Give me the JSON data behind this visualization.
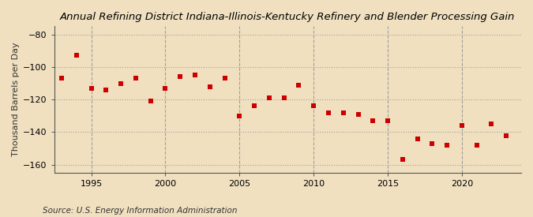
{
  "title": "Annual Refining District Indiana-Illinois-Kentucky Refinery and Blender Processing Gain",
  "ylabel": "Thousand Barrels per Day",
  "source": "Source: U.S. Energy Information Administration",
  "background_color": "#f0e0c0",
  "plot_background_color": "#f0e0c0",
  "years": [
    1993,
    1994,
    1995,
    1996,
    1997,
    1998,
    1999,
    2000,
    2001,
    2002,
    2003,
    2004,
    2005,
    2006,
    2007,
    2008,
    2009,
    2010,
    2011,
    2012,
    2013,
    2014,
    2015,
    2016,
    2017,
    2018,
    2019,
    2020,
    2021,
    2022,
    2023
  ],
  "values": [
    -107,
    -93,
    -113,
    -114,
    -110,
    -107,
    -121,
    -113,
    -106,
    -105,
    -112,
    -107,
    -130,
    -124,
    -119,
    -119,
    -111,
    -124,
    -128,
    -128,
    -129,
    -133,
    -133,
    -157,
    -144,
    -147,
    -148,
    -136,
    -148,
    -135,
    -142
  ],
  "marker_color": "#cc0000",
  "marker_size": 25,
  "ylim": [
    -165,
    -75
  ],
  "yticks": [
    -160,
    -140,
    -120,
    -100,
    -80
  ],
  "xlim": [
    1992.5,
    2024
  ],
  "xticks": [
    1995,
    2000,
    2005,
    2010,
    2015,
    2020
  ],
  "hgrid_color": "#999999",
  "vgrid_color": "#999999",
  "title_fontsize": 9.5,
  "label_fontsize": 8,
  "tick_fontsize": 8,
  "source_fontsize": 7.5
}
